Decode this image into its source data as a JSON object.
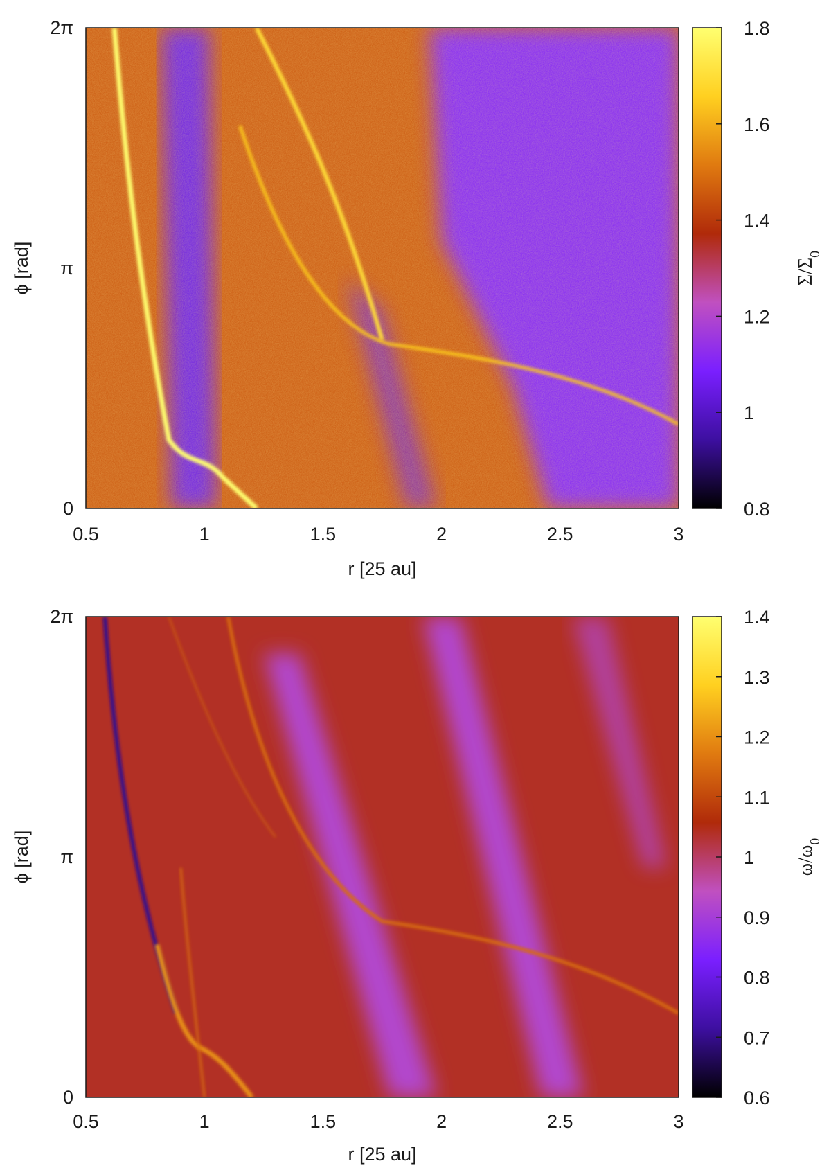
{
  "chart_data": [
    {
      "type": "heatmap",
      "title": "",
      "xlabel": "r [25 au]",
      "ylabel": "ϕ [rad]",
      "xlim": [
        0.5,
        3
      ],
      "x_ticks": [
        "0.5",
        "1",
        "1.5",
        "2",
        "2.5",
        "3"
      ],
      "ylim": [
        0,
        6.2832
      ],
      "y_ticks": [
        "0",
        "π",
        "2π"
      ],
      "colorbar": {
        "label_main": "Σ/Σ",
        "label_sub": "0",
        "range": [
          0.8,
          1.8
        ],
        "ticks": [
          "0.8",
          "1",
          "1.2",
          "1.4",
          "1.6",
          "1.8"
        ],
        "colormap": [
          "#000000",
          "#3d0fa0",
          "#7a1fff",
          "#c050c0",
          "#b02a0a",
          "#e07a10",
          "#ffd020",
          "#ffff70"
        ]
      },
      "background_level": 1.45,
      "features": [
        {
          "kind": "inner spiral arm",
          "level": 1.8
        },
        {
          "kind": "outer spiral arm",
          "level": 1.7
        },
        {
          "kind": "secondary arm",
          "level": 1.65
        },
        {
          "kind": "low-density stripe",
          "level": 1.05
        },
        {
          "kind": "low-density outer region",
          "level": 1.1
        }
      ]
    },
    {
      "type": "heatmap",
      "title": "",
      "xlabel": "r [25 au]",
      "ylabel": "ϕ [rad]",
      "xlim": [
        0.5,
        3
      ],
      "x_ticks": [
        "0.5",
        "1",
        "1.5",
        "2",
        "2.5",
        "3"
      ],
      "ylim": [
        0,
        6.2832
      ],
      "y_ticks": [
        "0",
        "π",
        "2π"
      ],
      "colorbar": {
        "label_main": "ω/ω",
        "label_sub": "0",
        "range": [
          0.6,
          1.4
        ],
        "ticks": [
          "0.6",
          "0.7",
          "0.8",
          "0.9",
          "1",
          "1.1",
          "1.2",
          "1.3",
          "1.4"
        ],
        "colormap": [
          "#000000",
          "#3d0fa0",
          "#7a1fff",
          "#c050c0",
          "#b02a0a",
          "#e07a10",
          "#ffd020",
          "#ffff70"
        ]
      },
      "background_level": 1.04,
      "features": [
        {
          "kind": "inner spiral arm",
          "level": 1.2
        },
        {
          "kind": "outer spiral arm",
          "level": 1.15
        },
        {
          "kind": "inner dark arm",
          "level": 0.7
        },
        {
          "kind": "low vorticity stripe",
          "level": 0.92
        }
      ]
    }
  ]
}
